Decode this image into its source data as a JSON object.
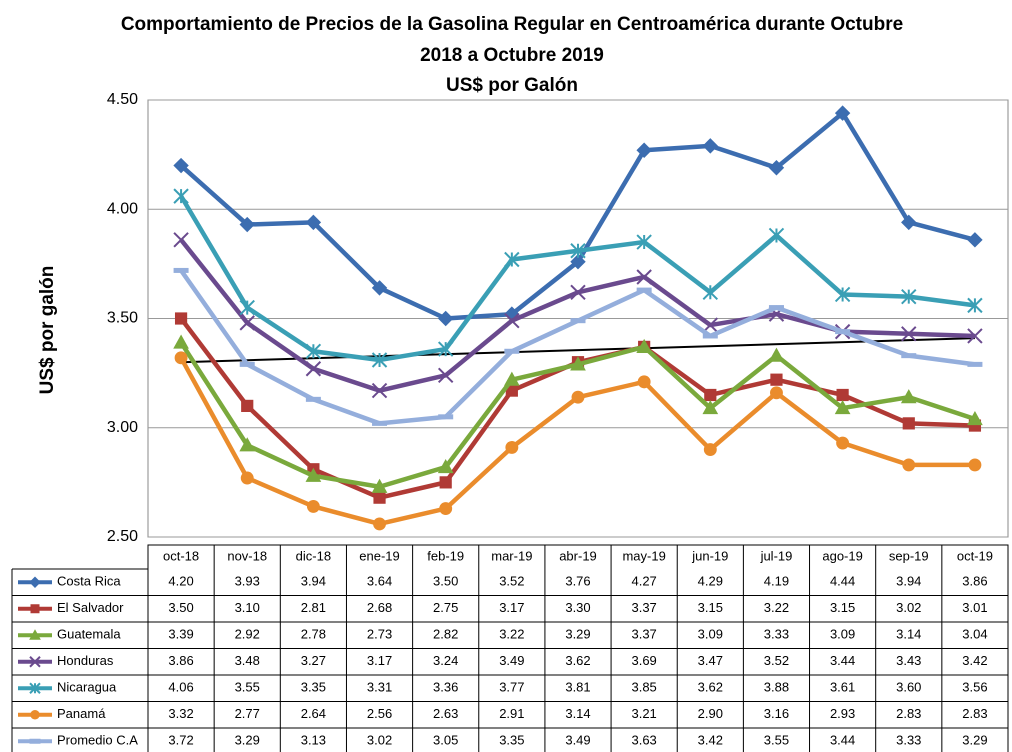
{
  "chart_data": {
    "type": "line",
    "title": [
      "Comportamiento de Precios de la Gasolina Regular en Centroamérica durante  Octubre",
      "2018 a  Octubre 2019"
    ],
    "subtitle": "US$ por Galón",
    "y_label": "US$ por galón",
    "categories": [
      "oct-18",
      "nov-18",
      "dic-18",
      "ene-19",
      "feb-19",
      "mar-19",
      "abr-19",
      "may-19",
      "jun-19",
      "jul-19",
      "ago-19",
      "sep-19",
      "oct-19"
    ],
    "ylim": [
      2.5,
      4.5
    ],
    "yticks": [
      {
        "value": 2.5,
        "label": "2.50"
      },
      {
        "value": 3,
        "label": "3.00"
      },
      {
        "value": 3.5,
        "label": "3.50"
      },
      {
        "value": 4,
        "label": "4.00"
      },
      {
        "value": 4.5,
        "label": "4.50"
      }
    ],
    "grid": true,
    "trend": {
      "color": "#000000",
      "start": 3.3,
      "end": 3.41
    },
    "series": [
      {
        "name": "Costa Rica",
        "color": "#3c6db0",
        "marker": "diamond",
        "values": [
          4.2,
          3.93,
          3.94,
          3.64,
          3.5,
          3.52,
          3.76,
          4.27,
          4.29,
          4.19,
          4.44,
          3.94,
          3.86
        ],
        "value_labels": [
          "4.20",
          "3.93",
          "3.94",
          "3.64",
          "3.50",
          "3.52",
          "3.76",
          "4.27",
          "4.29",
          "4.19",
          "4.44",
          "3.94",
          "3.86"
        ]
      },
      {
        "name": "El Salvador",
        "color": "#b03a35",
        "marker": "square",
        "values": [
          3.5,
          3.1,
          2.81,
          2.68,
          2.75,
          3.17,
          3.3,
          3.37,
          3.15,
          3.22,
          3.15,
          3.02,
          3.01
        ],
        "value_labels": [
          "3.50",
          "3.10",
          "2.81",
          "2.68",
          "2.75",
          "3.17",
          "3.30",
          "3.37",
          "3.15",
          "3.22",
          "3.15",
          "3.02",
          "3.01"
        ]
      },
      {
        "name": "Guatemala",
        "color": "#7aa93c",
        "marker": "triangle",
        "values": [
          3.39,
          2.92,
          2.78,
          2.73,
          2.82,
          3.22,
          3.29,
          3.37,
          3.09,
          3.33,
          3.09,
          3.14,
          3.04
        ],
        "value_labels": [
          "3.39",
          "2.92",
          "2.78",
          "2.73",
          "2.82",
          "3.22",
          "3.29",
          "3.37",
          "3.09",
          "3.33",
          "3.09",
          "3.14",
          "3.04"
        ]
      },
      {
        "name": "Honduras",
        "color": "#6a4a8e",
        "marker": "cross",
        "values": [
          3.86,
          3.48,
          3.27,
          3.17,
          3.24,
          3.49,
          3.62,
          3.69,
          3.47,
          3.52,
          3.44,
          3.43,
          3.42
        ],
        "value_labels": [
          "3.86",
          "3.48",
          "3.27",
          "3.17",
          "3.24",
          "3.49",
          "3.62",
          "3.69",
          "3.47",
          "3.52",
          "3.44",
          "3.43",
          "3.42"
        ]
      },
      {
        "name": "Nicaragua",
        "color": "#3a9fb5",
        "marker": "star",
        "values": [
          4.06,
          3.55,
          3.35,
          3.31,
          3.36,
          3.77,
          3.81,
          3.85,
          3.62,
          3.88,
          3.61,
          3.6,
          3.56
        ],
        "value_labels": [
          "4.06",
          "3.55",
          "3.35",
          "3.31",
          "3.36",
          "3.77",
          "3.81",
          "3.85",
          "3.62",
          "3.88",
          "3.61",
          "3.60",
          "3.56"
        ]
      },
      {
        "name": "Panamá",
        "color": "#ea8c2c",
        "marker": "circle",
        "values": [
          3.32,
          2.77,
          2.64,
          2.56,
          2.63,
          2.91,
          3.14,
          3.21,
          2.9,
          3.16,
          2.93,
          2.83,
          2.83
        ],
        "value_labels": [
          "3.32",
          "2.77",
          "2.64",
          "2.56",
          "2.63",
          "2.91",
          "3.14",
          "3.21",
          "2.90",
          "3.16",
          "2.93",
          "2.83",
          "2.83"
        ]
      },
      {
        "name": "Promedio C.A",
        "color": "#94aedc",
        "marker": "dash",
        "values": [
          3.72,
          3.29,
          3.13,
          3.02,
          3.05,
          3.35,
          3.49,
          3.63,
          3.42,
          3.55,
          3.44,
          3.33,
          3.29
        ],
        "value_labels": [
          "3.72",
          "3.29",
          "3.13",
          "3.02",
          "3.05",
          "3.35",
          "3.49",
          "3.63",
          "3.42",
          "3.55",
          "3.44",
          "3.33",
          "3.29"
        ]
      }
    ]
  }
}
